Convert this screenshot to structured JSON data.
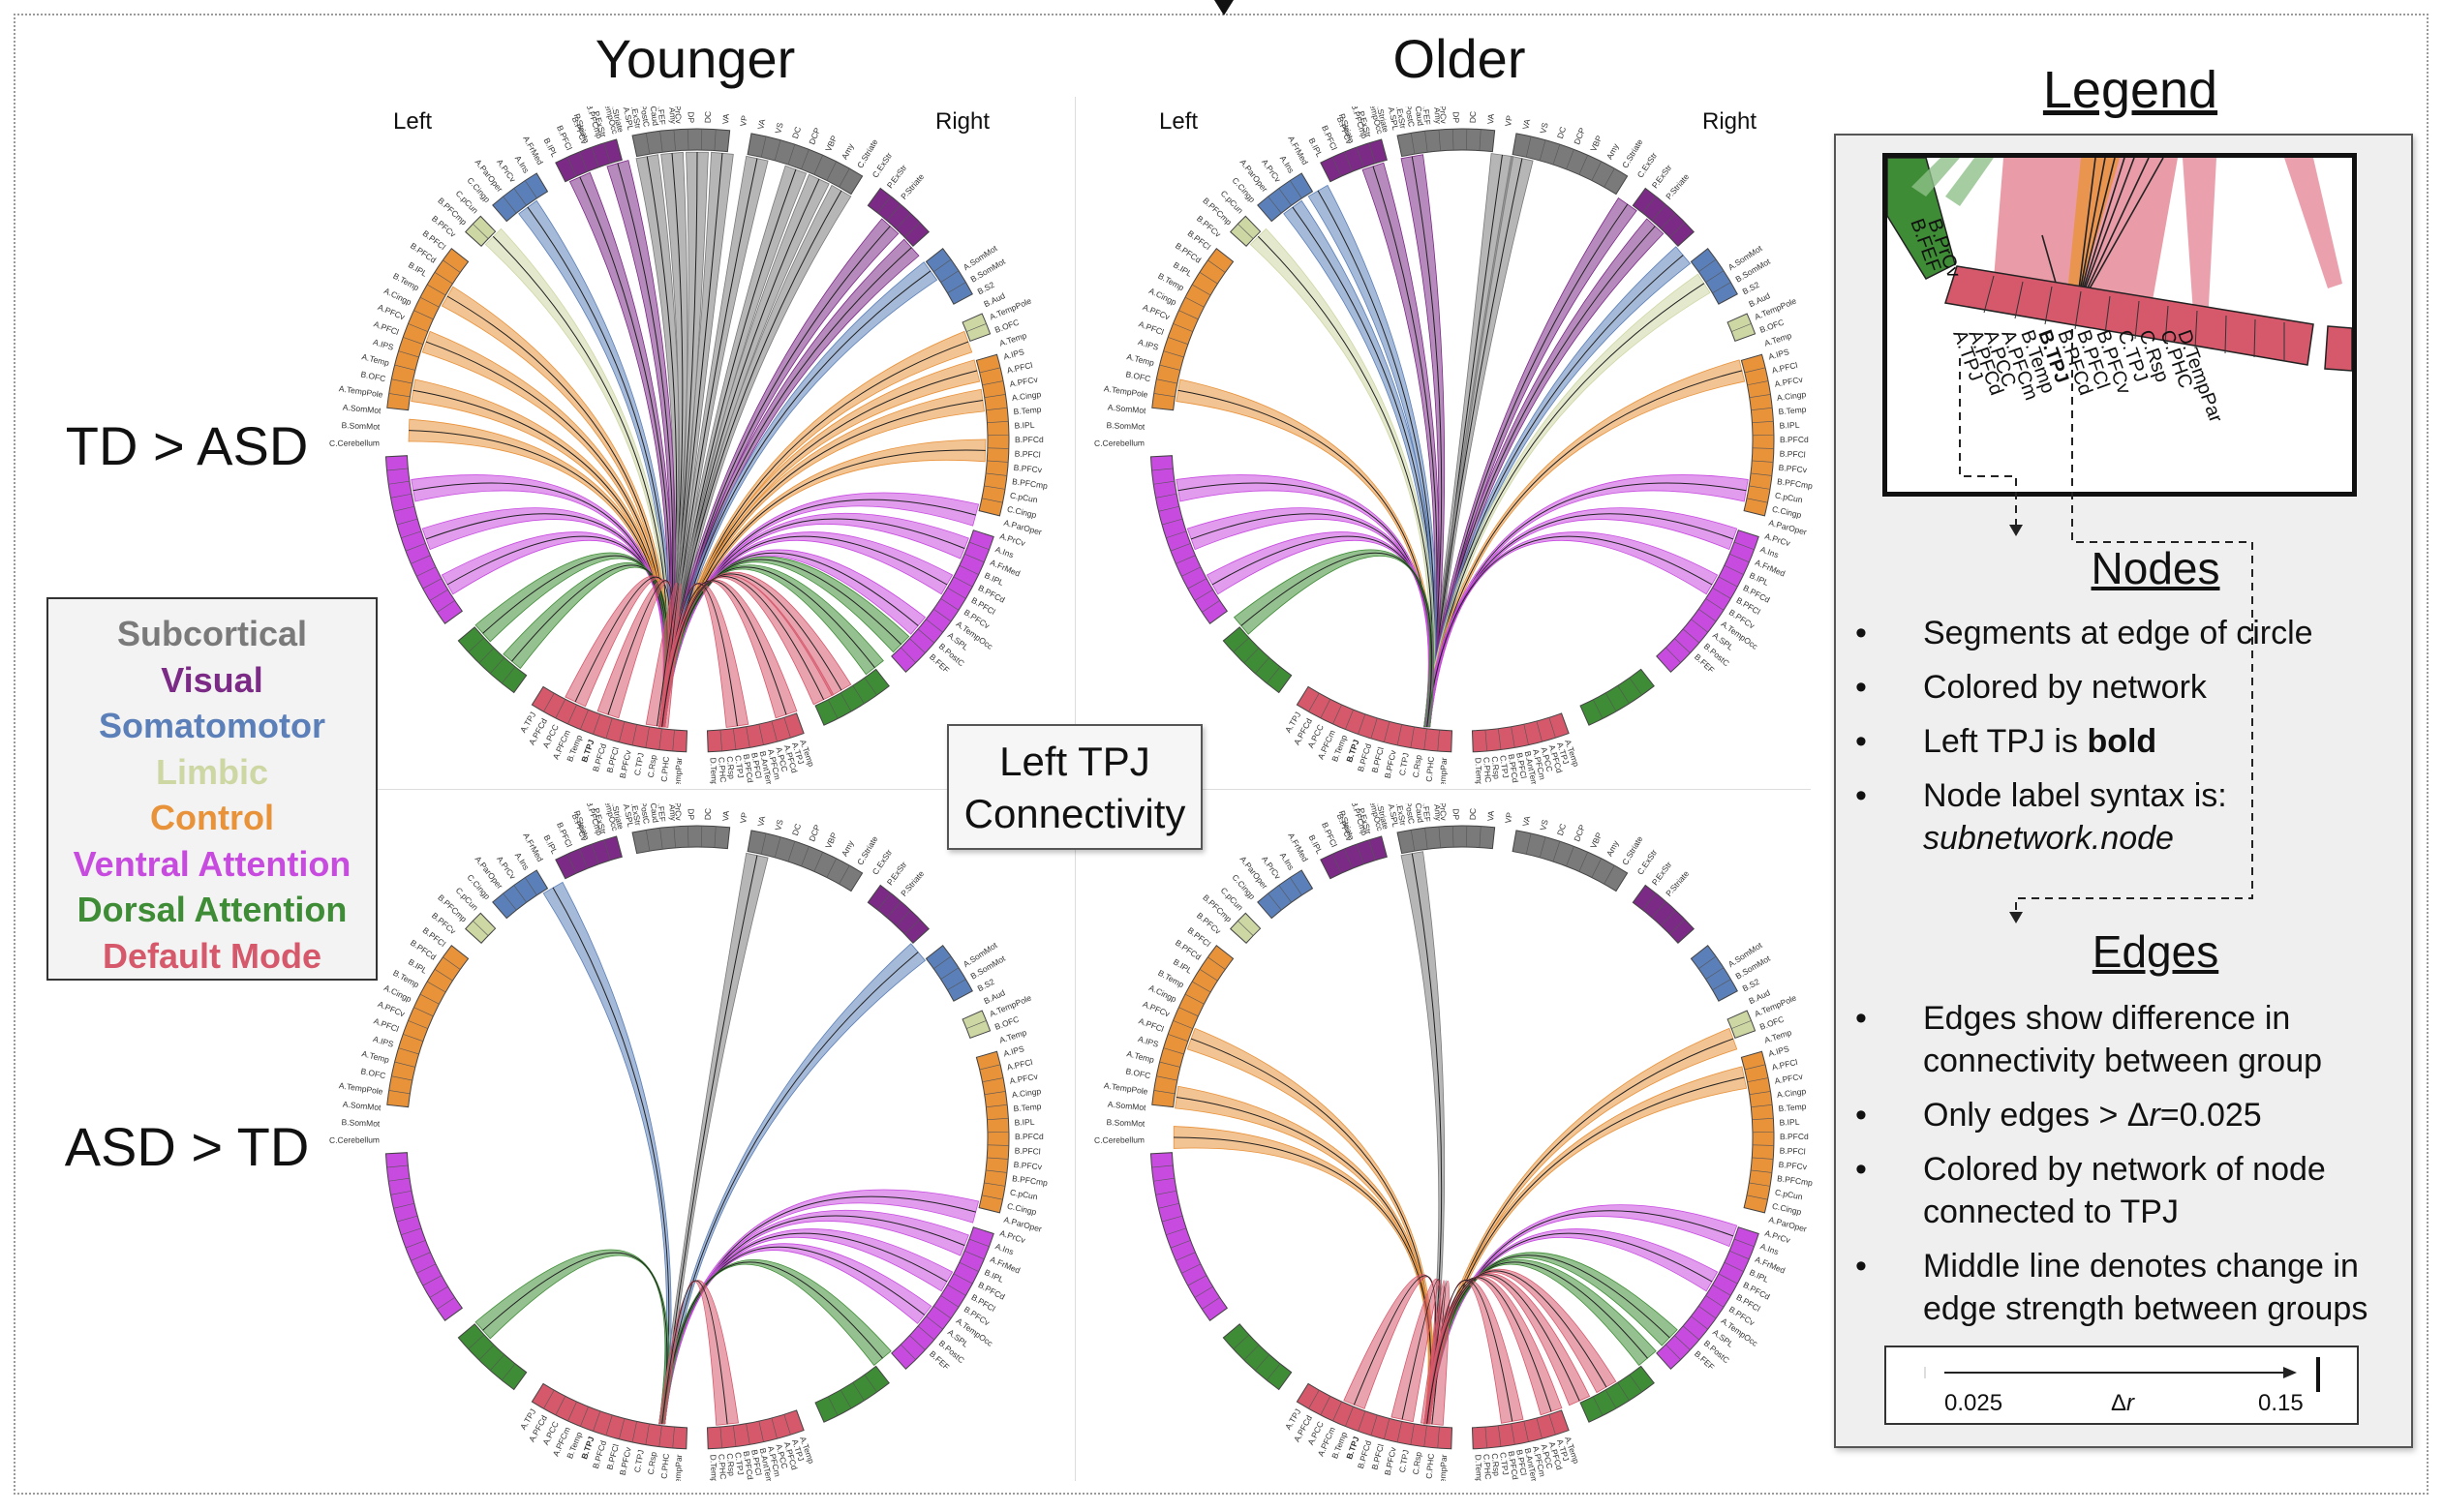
{
  "columns": {
    "younger": "Younger",
    "older": "Older"
  },
  "rows": {
    "td_gt_asd": "TD > ASD",
    "asd_gt_td": "ASD > TD"
  },
  "side_labels": {
    "left": "Left",
    "right": "Right"
  },
  "center_label": {
    "line1": "Left TPJ",
    "line2": "Connectivity"
  },
  "networks": [
    {
      "name": "Subcortical",
      "color": "#7a7a7a"
    },
    {
      "name": "Visual",
      "color": "#7b2a86"
    },
    {
      "name": "Somatomotor",
      "color": "#5b7fb8"
    },
    {
      "name": "Limbic",
      "color": "#cdd7a4"
    },
    {
      "name": "Control",
      "color": "#e8923a"
    },
    {
      "name": "Ventral Attention",
      "color": "#c84be0"
    },
    {
      "name": "Dorsal Attention",
      "color": "#3e8c35"
    },
    {
      "name": "Default Mode",
      "color": "#d6586b"
    }
  ],
  "legend": {
    "title": "Legend",
    "zoom_labels": [
      "B.FEF",
      "B.PrCv",
      "A.TPJ",
      "A.PFCd",
      "A.PCC",
      "A.PFCm",
      "B.Temp",
      "B.TPJ",
      "B.PFCd",
      "B.PFCl",
      "B.PFCv",
      "C.TPJ",
      "C.Rsp",
      "C.PHC",
      "D.TempPar",
      "D.TempPar"
    ],
    "nodes_title": "Nodes",
    "nodes_items": {
      "i1": "Segments at edge of circle",
      "i2": "Colored by network",
      "i3_pre": "Left TPJ is ",
      "i3_bold": "bold",
      "i4_a": "Node label syntax is:",
      "i4_b": "subnetwork.node"
    },
    "edges_title": "Edges",
    "edges_items": {
      "i1_a": "Edges show difference in",
      "i1_b": "connectivity between group",
      "i2_pre": "Only edges > Δ",
      "i2_r": "r",
      "i2_post": "=0.025",
      "i3_a": "Colored by network of node",
      "i3_b": "connected to TPJ",
      "i4_a": "Middle line denotes change in",
      "i4_b": "edge strength between groups"
    },
    "scale": {
      "min": "0.025",
      "label_delta": "Δ",
      "label_r": "r",
      "max": "0.15"
    }
  },
  "node_labels": {
    "left": [
      "C.Cerebellum",
      "B.SomMot",
      "A.SomMot",
      "A.TempPole",
      "B.OFC",
      "A.Temp",
      "A.IPS",
      "A.PFCl",
      "A.PFCv",
      "A.Cingp",
      "B.Temp",
      "B.IPL",
      "B.PFCd",
      "B.PFCl",
      "B.PFCv",
      "B.PFCmp",
      "C.pCun",
      "C.Cingp",
      "A.ParOper",
      "A.PrCv",
      "A.Ins",
      "A.FrMed",
      "B.IPL",
      "B.PFCl",
      "B.PFCv",
      "B.PFCmp",
      "A.TempOcc",
      "A.SPL",
      "B.PostC",
      "B.FEF",
      "B.PrCv"
    ],
    "right": [
      "A.SomMot",
      "B.SomMot",
      "B.S2",
      "B.Aud",
      "A.TempPole",
      "B.OFC",
      "A.Temp",
      "A.IPS",
      "A.PFCl",
      "A.PFCv",
      "A.Cingp",
      "B.Temp",
      "B.IPL",
      "B.PFCd",
      "B.PFCl",
      "B.PFCv",
      "B.PFCmp",
      "C.pCun",
      "C.Cingp",
      "A.ParOper",
      "A.PrCv",
      "A.Ins",
      "A.FrMed",
      "B.IPL",
      "B.PFCd",
      "B.PFCl",
      "B.PFCv",
      "A.TempOcc",
      "A.SPL",
      "B.PostC",
      "B.FEF"
    ],
    "top": [
      "P.Striate",
      "P.ExStr",
      "C.Striate",
      "C.ExStr",
      "C.Caud",
      "Amy",
      "DP",
      "DC",
      "VA",
      "VP",
      "VA",
      "VS",
      "DC",
      "DCP",
      "VBP",
      "Amy",
      "C.Striate",
      "C.ExStr",
      "P.ExStr",
      "P.Striate"
    ],
    "bottom_left": [
      "A.TPJ",
      "A.PFCd",
      "A.PCC",
      "A.PFCm",
      "B.Temp",
      "B.TPJ",
      "B.PFCd",
      "B.PFCl",
      "B.PFCv",
      "C.TPJ",
      "C.Rsp",
      "C.PHC",
      "D.TempPar"
    ],
    "bottom_right": [
      "D.TempPar",
      "C.PHC",
      "C.Rsp",
      "C.TPJ",
      "B.PFCd",
      "B.PFCl",
      "B.AntTemp",
      "A.PFCm",
      "A.PCC",
      "A.PFCd",
      "A.TPJ",
      "A.Temp"
    ]
  },
  "panels": {
    "y_td": {
      "label": "Younger TD > ASD",
      "edges": [
        {
          "net": "Subcortical",
          "angles": [
            -100,
            -95,
            -90,
            -85,
            -78,
            -70,
            -65,
            -60
          ]
        },
        {
          "net": "Visual",
          "angles": [
            -114,
            -106,
            -48,
            -42
          ]
        },
        {
          "net": "Somatomotor",
          "angles": [
            -126,
            -36
          ]
        },
        {
          "net": "Limbic",
          "angles": [
            -135
          ]
        },
        {
          "net": "Control",
          "angles": [
            -150,
            -160,
            -170,
            -178,
            -20,
            -14,
            -8,
            2
          ]
        },
        {
          "net": "Ventral Attention",
          "angles": [
            170,
            160,
            150,
            15,
            22,
            30,
            40
          ]
        },
        {
          "net": "Dorsal Attention",
          "angles": [
            138,
            130,
            52,
            45
          ]
        },
        {
          "net": "Default Mode",
          "angles": [
            115,
            108,
            98,
            82,
            72,
            64,
            60
          ]
        }
      ]
    },
    "o_td": {
      "label": "Older TD > ASD",
      "edges": [
        {
          "net": "Subcortical",
          "angles": [
            -82,
            -78
          ]
        },
        {
          "net": "Visual",
          "angles": [
            -108,
            -100,
            -55,
            -48
          ]
        },
        {
          "net": "Somatomotor",
          "angles": [
            -126,
            -120,
            -40
          ]
        },
        {
          "net": "Limbic",
          "angles": [
            -135,
            -33
          ]
        },
        {
          "net": "Control",
          "angles": [
            -170,
            -14
          ]
        },
        {
          "net": "Ventral Attention",
          "angles": [
            170,
            160,
            150,
            10,
            20,
            30
          ]
        },
        {
          "net": "Dorsal Attention",
          "angles": [
            140
          ]
        },
        {
          "net": "Default Mode",
          "angles": []
        }
      ]
    },
    "y_asd": {
      "label": "Younger ASD > TD",
      "edges": [
        {
          "net": "Subcortical",
          "angles": [
            -78
          ]
        },
        {
          "net": "Somatomotor",
          "angles": [
            -120,
            -40
          ]
        },
        {
          "net": "Ventral Attention",
          "angles": [
            15,
            22,
            30,
            38
          ]
        },
        {
          "net": "Dorsal Attention",
          "angles": [
            138,
            50
          ]
        },
        {
          "net": "Default Mode",
          "angles": [
            84
          ]
        }
      ]
    },
    "o_asd": {
      "label": "Older ASD > TD",
      "edges": [
        {
          "net": "Subcortical",
          "angles": [
            -100
          ]
        },
        {
          "net": "Control",
          "angles": [
            -160,
            -172,
            180,
            -20,
            -12
          ]
        },
        {
          "net": "Ventral Attention",
          "angles": [
            20,
            30
          ]
        },
        {
          "net": "Dorsal Attention",
          "angles": [
            44,
            50
          ]
        },
        {
          "net": "Default Mode",
          "angles": [
            112,
            102,
            96,
            80,
            72,
            66,
            60
          ]
        }
      ]
    }
  }
}
